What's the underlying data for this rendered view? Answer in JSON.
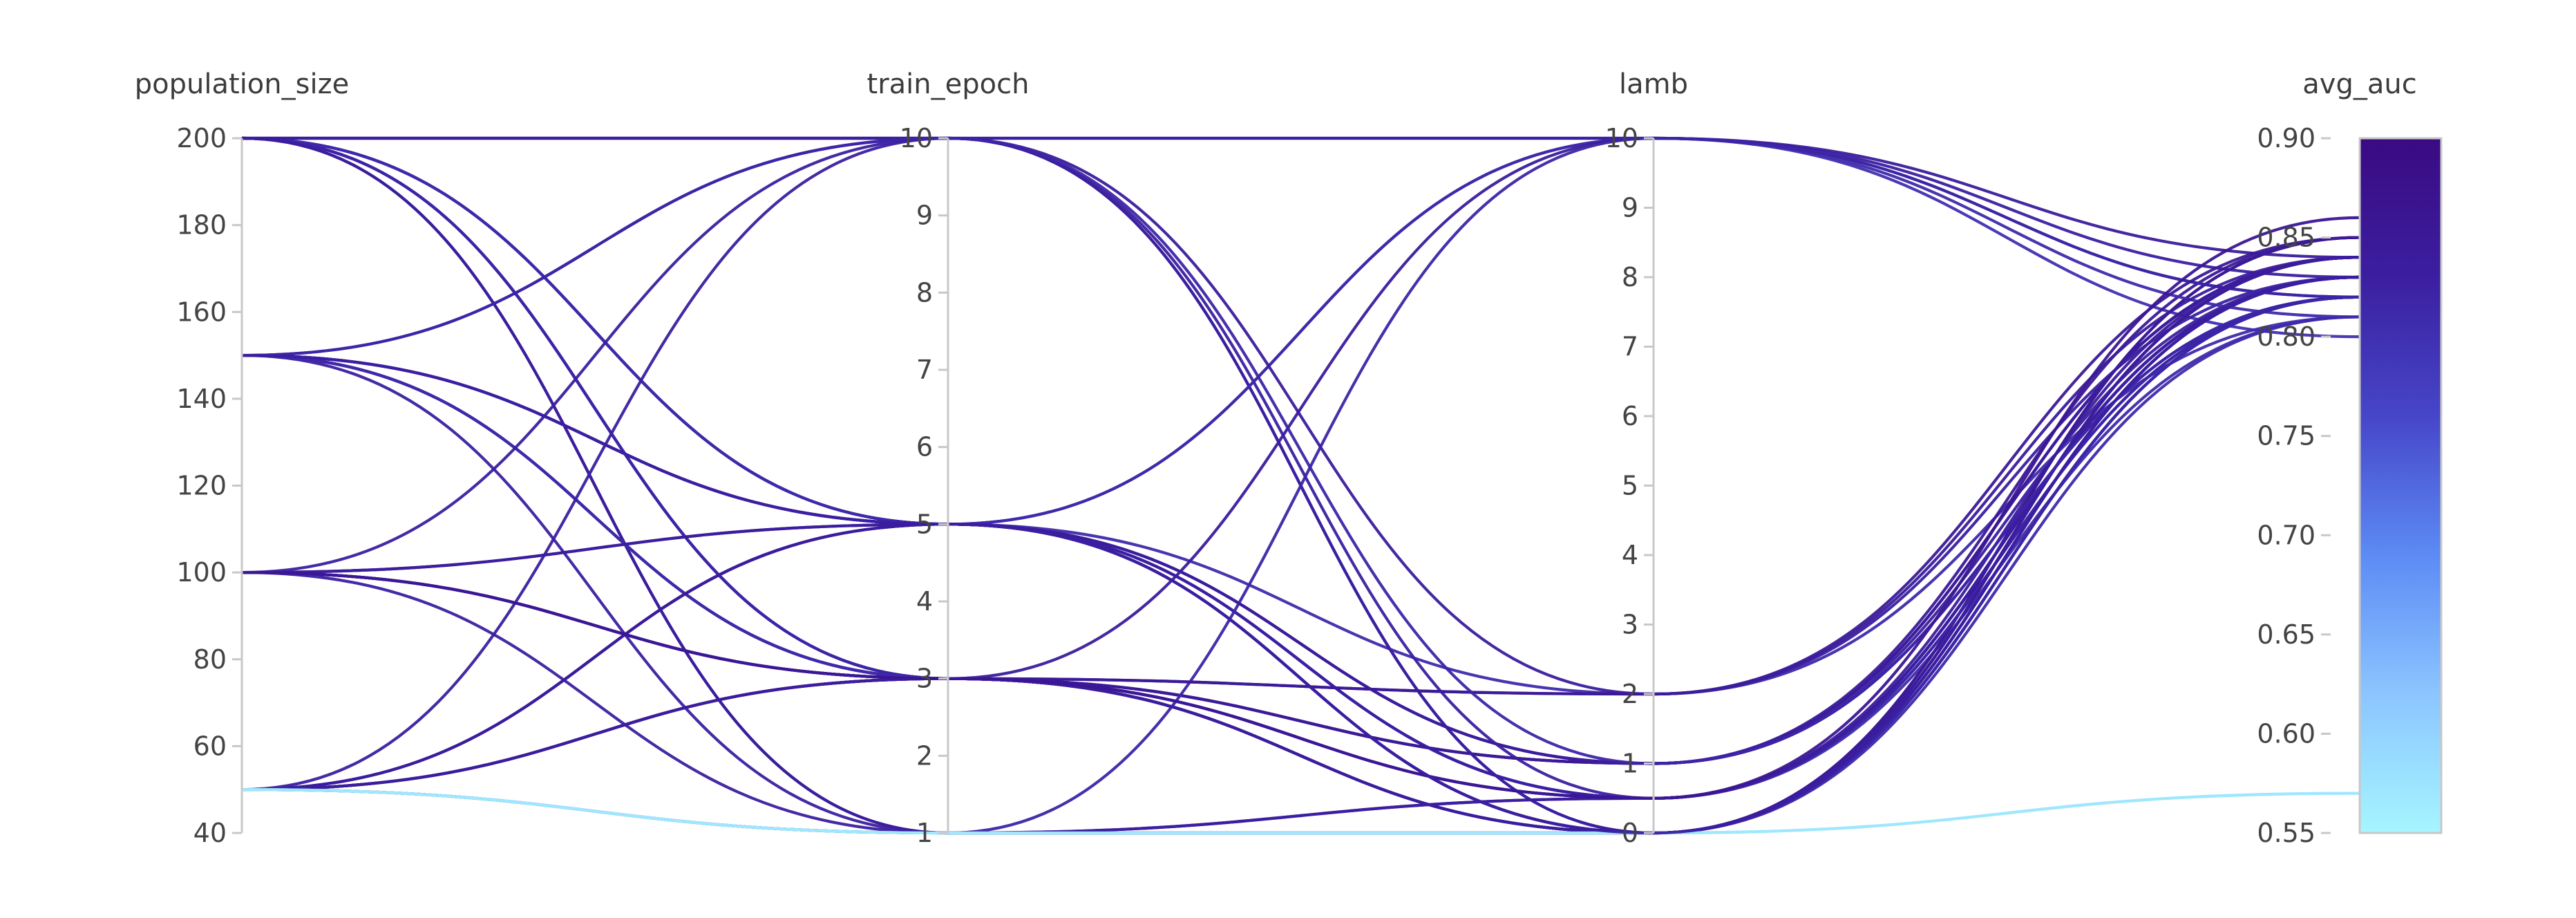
{
  "chart_data": {
    "type": "parallel_coordinates",
    "title": "",
    "axes": [
      {
        "key": "population_size",
        "label": "population_size",
        "range": [
          40,
          200
        ],
        "ticks": [
          "200",
          "180",
          "160",
          "140",
          "120",
          "100",
          "80",
          "60",
          "40"
        ]
      },
      {
        "key": "train_epoch",
        "label": "train_epoch",
        "range": [
          1,
          10
        ],
        "ticks": [
          "10",
          "9",
          "8",
          "7",
          "6",
          "5",
          "4",
          "3",
          "2",
          "1"
        ]
      },
      {
        "key": "lamb",
        "label": "lamb",
        "range": [
          0,
          10
        ],
        "ticks": [
          "10",
          "9",
          "8",
          "7",
          "6",
          "5",
          "4",
          "3",
          "2",
          "1",
          "0"
        ]
      },
      {
        "key": "avg_auc",
        "label": "avg_auc",
        "range": [
          0.55,
          0.9
        ],
        "ticks": [
          "0.90",
          "0.85",
          "0.80",
          "0.75",
          "0.70",
          "0.65",
          "0.60",
          "0.55"
        ]
      }
    ],
    "color_scale": {
      "dimension": "avg_auc",
      "range": [
        0.55,
        0.9
      ],
      "stops": [
        "#a6f5ff",
        "#8cc5ff",
        "#5c8bf5",
        "#4646c8",
        "#3b1fa0",
        "#3a0a82"
      ]
    },
    "trials": [
      [
        200,
        10,
        10,
        0.8
      ],
      [
        200,
        5,
        1,
        0.82
      ],
      [
        200,
        5,
        0.5,
        0.83
      ],
      [
        200,
        3,
        0,
        0.84
      ],
      [
        200,
        3,
        0.5,
        0.83
      ],
      [
        200,
        1,
        0,
        0.82
      ],
      [
        200,
        5,
        0,
        0.85
      ],
      [
        200,
        3,
        1,
        0.83
      ],
      [
        200,
        5,
        0.5,
        0.81
      ],
      [
        200,
        3,
        0,
        0.82
      ],
      [
        200,
        1,
        0.5,
        0.84
      ],
      [
        200,
        10,
        0,
        0.82
      ],
      [
        150,
        10,
        10,
        0.83
      ],
      [
        150,
        5,
        2,
        0.81
      ],
      [
        150,
        5,
        1,
        0.84
      ],
      [
        150,
        5,
        0.5,
        0.82
      ],
      [
        150,
        3,
        0,
        0.85
      ],
      [
        150,
        3,
        0.5,
        0.83
      ],
      [
        150,
        1,
        0,
        0.83
      ],
      [
        150,
        3,
        1,
        0.84
      ],
      [
        150,
        5,
        0,
        0.82
      ],
      [
        150,
        3,
        0,
        0.81
      ],
      [
        100,
        10,
        0.5,
        0.83
      ],
      [
        100,
        5,
        10,
        0.82
      ],
      [
        100,
        5,
        0,
        0.84
      ],
      [
        100,
        3,
        2,
        0.83
      ],
      [
        100,
        3,
        1,
        0.85
      ],
      [
        100,
        3,
        0,
        0.84
      ],
      [
        100,
        1,
        0,
        0.83
      ],
      [
        100,
        3,
        0.5,
        0.82
      ],
      [
        50,
        10,
        0,
        0.83
      ],
      [
        50,
        5,
        10,
        0.81
      ],
      [
        50,
        3,
        10,
        0.84
      ],
      [
        50,
        3,
        0,
        0.82
      ],
      [
        50,
        5,
        0.5,
        0.83
      ],
      [
        50,
        1,
        10,
        0.82
      ],
      [
        50,
        3,
        2,
        0.85
      ],
      [
        50,
        5,
        1,
        0.84
      ],
      [
        50,
        1,
        0.5,
        0.83
      ],
      [
        50,
        3,
        0,
        0.84
      ],
      [
        50,
        1,
        0,
        0.57
      ],
      [
        50,
        1,
        0,
        0.57
      ],
      [
        200,
        10,
        2,
        0.84
      ],
      [
        150,
        10,
        1,
        0.82
      ],
      [
        100,
        3,
        0.5,
        0.86
      ],
      [
        150,
        5,
        0,
        0.83
      ]
    ]
  }
}
